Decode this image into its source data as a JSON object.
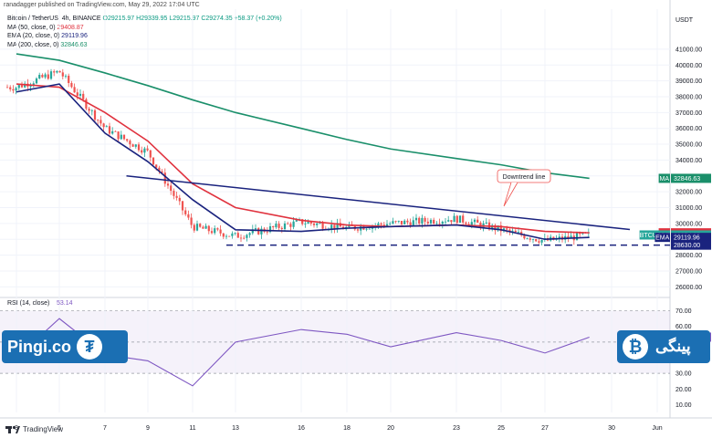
{
  "header": {
    "text": "ranadagger published on TradingView.com, May 29, 2022 17:04 UTC"
  },
  "legend": {
    "title": "Bitcoin / TetherUS, 4h, BINANCE",
    "ohlc": "O29215.97 H29339.95 L29215.97 C29274.35 +58.37 (+0.20%)",
    "ma50": {
      "label": "MA (50, close, 0)",
      "value": "29408.87"
    },
    "ema20": {
      "label": "EMA (20, close, 0)",
      "value": "29119.96"
    },
    "ma200": {
      "label": "MA (200, close, 0)",
      "value": "32846.63"
    }
  },
  "colors": {
    "ma50": "#e0323e",
    "ema20": "#1a237e",
    "ma200": "#1a8f6a",
    "trendline": "#1a237e",
    "support": "#1a237e",
    "up": "#26a69a",
    "down": "#ef5350",
    "rsi": "#7e57c2",
    "watermark": "#1b6fb3"
  },
  "axis": {
    "currency": "USDT",
    "price_ticks": [
      "41000.00",
      "40000.00",
      "39000.00",
      "38000.00",
      "37000.00",
      "36000.00",
      "35000.00",
      "34000.00",
      "33000.00",
      "32000.00",
      "31000.00",
      "30000.00",
      "29000.00",
      "28000.00",
      "27000.00",
      "26000.00"
    ],
    "rsi_ticks": [
      "70.00",
      "60.00",
      "50.00",
      "40.00",
      "30.00",
      "20.00",
      "10.00"
    ],
    "date_ticks": [
      "3",
      "5",
      "7",
      "9",
      "11",
      "13",
      "16",
      "18",
      "20",
      "23",
      "25",
      "27",
      "30",
      "Jun"
    ]
  },
  "price_tags": [
    {
      "label": "MA",
      "value": "32846.63",
      "color": "#1a8f6a"
    },
    {
      "label": "MA",
      "value": "29408.87",
      "color": "#e0323e"
    },
    {
      "label": "BTCUSDT",
      "value": "29274.35",
      "sub": "02:55:36",
      "color": "#26a69a"
    },
    {
      "label": "EMA",
      "value": "29119.96",
      "color": "#1a237e"
    },
    {
      "label": "",
      "value": "28630.00",
      "color": "#1a237e"
    }
  ],
  "annotation": {
    "text": "Downtrend line"
  },
  "rsi": {
    "label": "RSI (14, close)",
    "value": "53.14",
    "tag_label": "RSI"
  },
  "footer": {
    "brand": "TradingView"
  },
  "watermark": {
    "left_text": "Pingi.co",
    "right_text": "پینگی"
  },
  "chart_data": {
    "type": "candlestick",
    "title": "Bitcoin / TetherUS, 4h, BINANCE",
    "ylabel": "USDT",
    "ylim": [
      25500,
      41800
    ],
    "x_labels": [
      "3",
      "5",
      "7",
      "9",
      "11",
      "13",
      "16",
      "18",
      "20",
      "23",
      "25",
      "27",
      "30",
      "Jun"
    ],
    "series": [
      {
        "name": "BTCUSDT close (approx)",
        "x": [
          "3",
          "5",
          "7",
          "9",
          "11",
          "13",
          "16",
          "18",
          "20",
          "23",
          "25",
          "27",
          "29"
        ],
        "values": [
          38600,
          39600,
          36000,
          34500,
          29800,
          29200,
          30100,
          29700,
          30000,
          30300,
          29600,
          28900,
          29274
        ]
      },
      {
        "name": "MA (50, close, 0)",
        "x": [
          "3",
          "5",
          "7",
          "9",
          "11",
          "13",
          "16",
          "18",
          "20",
          "23",
          "25",
          "27",
          "29"
        ],
        "values": [
          38800,
          38600,
          37000,
          35200,
          32500,
          31000,
          30200,
          29900,
          29800,
          29900,
          29800,
          29500,
          29409
        ]
      },
      {
        "name": "EMA (20, close, 0)",
        "x": [
          "3",
          "5",
          "7",
          "9",
          "11",
          "13",
          "16",
          "18",
          "20",
          "23",
          "25",
          "27",
          "29"
        ],
        "values": [
          38300,
          38800,
          35700,
          33900,
          31500,
          29600,
          29500,
          29700,
          29800,
          29900,
          29600,
          29000,
          29120
        ]
      },
      {
        "name": "MA (200, close, 0)",
        "x": [
          "3",
          "5",
          "7",
          "9",
          "11",
          "13",
          "16",
          "18",
          "20",
          "23",
          "25",
          "27",
          "29"
        ],
        "values": [
          40700,
          40300,
          39500,
          38700,
          37800,
          37000,
          36000,
          35300,
          34700,
          34100,
          33700,
          33200,
          32847
        ]
      }
    ],
    "levels": {
      "support": 28630,
      "downtrend_line": {
        "from": {
          "x": "8",
          "y": 33000
        },
        "to": {
          "x": "30",
          "y": 29500
        }
      }
    },
    "rsi": {
      "ylim": [
        5,
        75
      ],
      "x": [
        "3",
        "5",
        "7",
        "9",
        "11",
        "13",
        "16",
        "18",
        "20",
        "23",
        "25",
        "27",
        "29"
      ],
      "values": [
        40,
        65,
        42,
        38,
        22,
        50,
        58,
        55,
        47,
        56,
        51,
        43,
        53.14
      ]
    }
  }
}
